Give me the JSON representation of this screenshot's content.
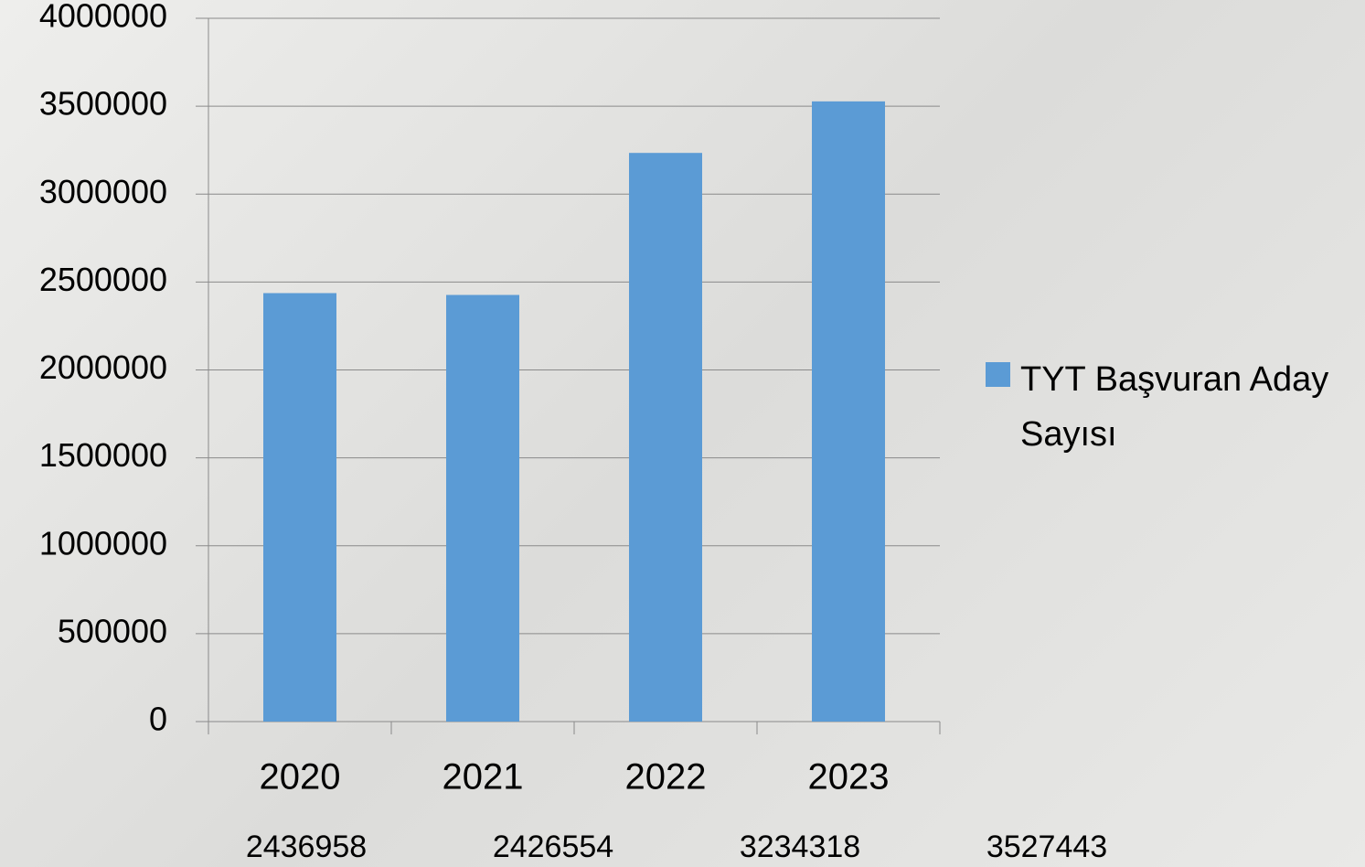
{
  "chart_data": {
    "type": "bar",
    "categories": [
      "2020",
      "2021",
      "2022",
      "2023"
    ],
    "series": [
      {
        "name": "TYT Başvuran Aday Sayısı",
        "color": "#5b9bd5",
        "values": [
          2436958,
          2426554,
          3234318,
          3527443
        ]
      }
    ],
    "ylim": [
      0,
      4000000
    ],
    "yticks": [
      0,
      500000,
      1000000,
      1500000,
      2000000,
      2500000,
      3000000,
      3500000,
      4000000
    ],
    "grid": true,
    "legend": "right"
  }
}
